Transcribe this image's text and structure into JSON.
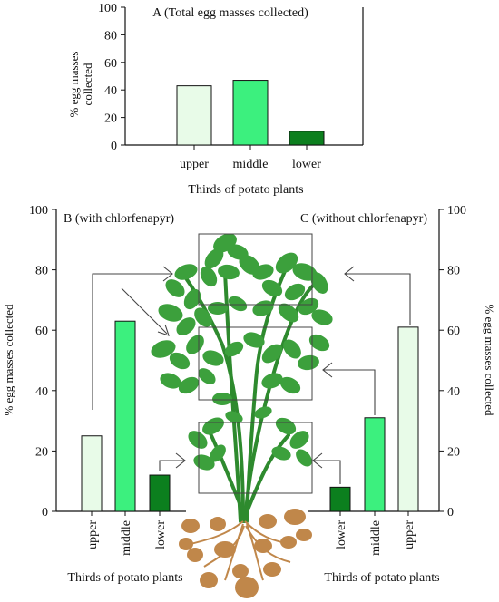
{
  "colors": {
    "upper": "#e8fbe8",
    "middle": "#3cf07e",
    "lower": "#0c7f1e",
    "leaf": "#3ca03c",
    "leaf_dark": "#2e8a2e",
    "tuber": "#c0874a"
  },
  "chart_data": [
    {
      "id": "A",
      "type": "bar",
      "title": "A (Total egg masses collected)",
      "xlabel": "Thirds of potato plants",
      "ylabel": "% egg masses collected",
      "ylim": [
        0,
        100
      ],
      "yticks": [
        0,
        20,
        40,
        60,
        80,
        100
      ],
      "categories": [
        "upper",
        "middle",
        "lower"
      ],
      "values": [
        43,
        47,
        10
      ]
    },
    {
      "id": "B",
      "type": "bar",
      "title": "B (with chlorfenapyr)",
      "xlabel": "Thirds of potato plants",
      "ylabel": "% egg masses collected",
      "ylim": [
        0,
        100
      ],
      "yticks": [
        0,
        20,
        40,
        60,
        80,
        100
      ],
      "categories": [
        "upper",
        "middle",
        "lower"
      ],
      "values": [
        25,
        63,
        12
      ]
    },
    {
      "id": "C",
      "type": "bar",
      "title": "C (without chlorfenapyr)",
      "xlabel": "Thirds of potato plants",
      "ylabel": "% egg masses collected",
      "ylim": [
        0,
        100
      ],
      "yticks": [
        0,
        20,
        40,
        60,
        80,
        100
      ],
      "categories": [
        "lower",
        "middle",
        "upper"
      ],
      "values": [
        8,
        31,
        61
      ]
    }
  ]
}
